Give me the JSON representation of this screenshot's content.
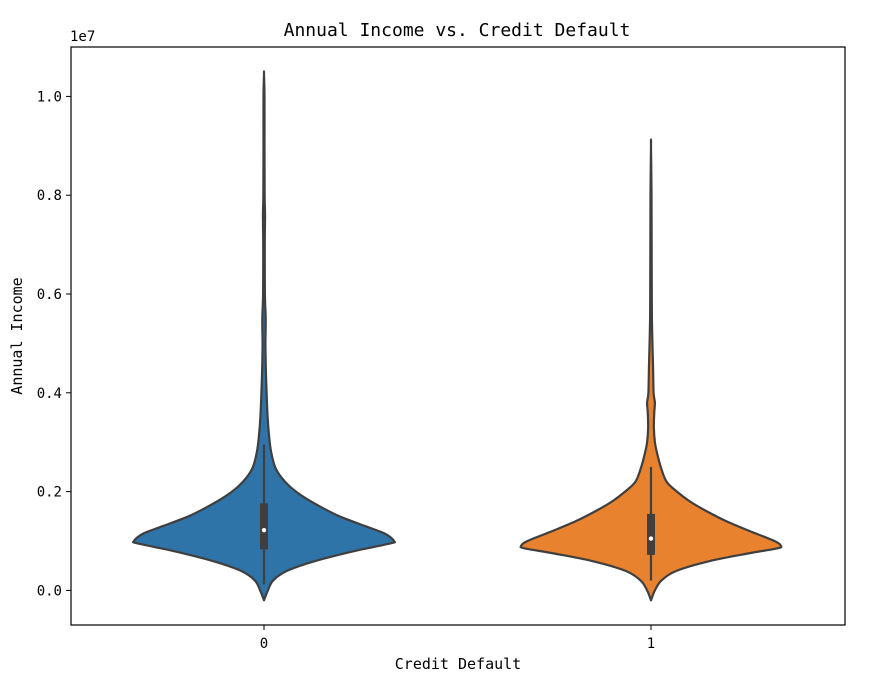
{
  "chart_data": {
    "type": "violin",
    "title": "Annual Income vs. Credit Default",
    "xlabel": "Credit Default",
    "ylabel": "Annual Income",
    "y_offset_label": "1e7",
    "y_scale_factor": 10000000,
    "ylim": [
      -0.07,
      1.1
    ],
    "y_ticks": [
      0.0,
      0.2,
      0.4,
      0.6,
      0.8,
      1.0
    ],
    "y_tick_labels": [
      "0.0",
      "0.2",
      "0.4",
      "0.6",
      "0.8",
      "1.0"
    ],
    "categories": [
      "0",
      "1"
    ],
    "grid": false,
    "series": [
      {
        "category": "0",
        "color": "#2f74a8",
        "min": -0.02,
        "max": 1.045,
        "q1": 0.083,
        "median": 0.122,
        "q3": 0.176,
        "whisker_low": 0.012,
        "whisker_high": 0.295,
        "density_profile": [
          [
            -0.02,
            0.0
          ],
          [
            0.0,
            0.03
          ],
          [
            0.02,
            0.07
          ],
          [
            0.04,
            0.18
          ],
          [
            0.06,
            0.4
          ],
          [
            0.08,
            0.7
          ],
          [
            0.095,
            0.97
          ],
          [
            0.1,
            1.0
          ],
          [
            0.115,
            0.93
          ],
          [
            0.13,
            0.78
          ],
          [
            0.15,
            0.58
          ],
          [
            0.17,
            0.43
          ],
          [
            0.19,
            0.3
          ],
          [
            0.21,
            0.2
          ],
          [
            0.23,
            0.13
          ],
          [
            0.25,
            0.085
          ],
          [
            0.28,
            0.055
          ],
          [
            0.31,
            0.04
          ],
          [
            0.35,
            0.028
          ],
          [
            0.4,
            0.02
          ],
          [
            0.45,
            0.014
          ],
          [
            0.5,
            0.011
          ],
          [
            0.55,
            0.013
          ],
          [
            0.6,
            0.007
          ],
          [
            0.7,
            0.006
          ],
          [
            0.76,
            0.008
          ],
          [
            0.8,
            0.005
          ],
          [
            0.9,
            0.004
          ],
          [
            1.0,
            0.004
          ],
          [
            1.045,
            0.0
          ]
        ]
      },
      {
        "category": "1",
        "color": "#e8822e",
        "min": -0.02,
        "max": 0.9,
        "q1": 0.072,
        "median": 0.105,
        "q3": 0.155,
        "whisker_low": 0.02,
        "whisker_high": 0.25,
        "density_profile": [
          [
            -0.02,
            0.0
          ],
          [
            0.0,
            0.03
          ],
          [
            0.02,
            0.08
          ],
          [
            0.04,
            0.2
          ],
          [
            0.06,
            0.46
          ],
          [
            0.075,
            0.75
          ],
          [
            0.085,
            0.97
          ],
          [
            0.09,
            1.0
          ],
          [
            0.1,
            0.95
          ],
          [
            0.12,
            0.76
          ],
          [
            0.14,
            0.58
          ],
          [
            0.16,
            0.43
          ],
          [
            0.18,
            0.3
          ],
          [
            0.2,
            0.2
          ],
          [
            0.22,
            0.12
          ],
          [
            0.25,
            0.075
          ],
          [
            0.28,
            0.045
          ],
          [
            0.3,
            0.03
          ],
          [
            0.33,
            0.022
          ],
          [
            0.36,
            0.025
          ],
          [
            0.38,
            0.03
          ],
          [
            0.4,
            0.02
          ],
          [
            0.45,
            0.016
          ],
          [
            0.5,
            0.011
          ],
          [
            0.55,
            0.007
          ],
          [
            0.6,
            0.006
          ],
          [
            0.7,
            0.005
          ],
          [
            0.8,
            0.004
          ],
          [
            0.9,
            0.0
          ]
        ]
      }
    ]
  }
}
